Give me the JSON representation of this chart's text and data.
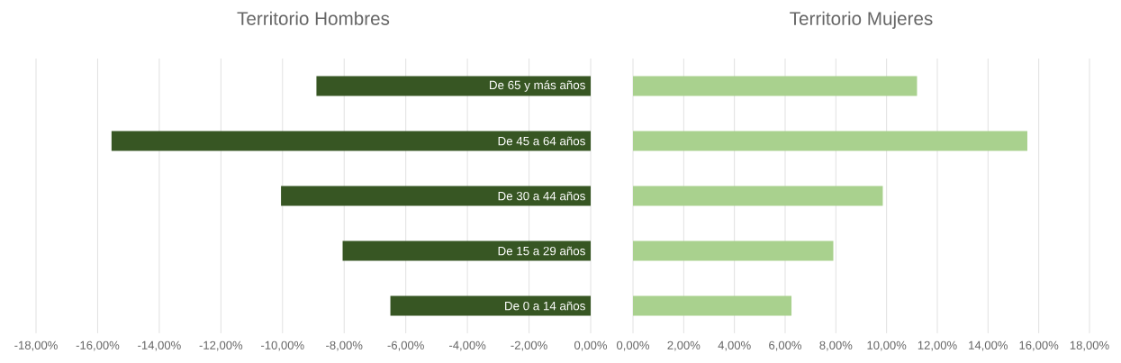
{
  "chart_data": [
    {
      "type": "bar",
      "orientation": "horizontal",
      "title": "Territorio Hombres",
      "categories": [
        "De 65 y más años",
        "De 45 a 64 años",
        "De 30 a 44 años",
        "De 15 a 29 años",
        "De 0 a 14 años"
      ],
      "values": [
        -8.9,
        -15.55,
        -10.05,
        -8.05,
        -6.5
      ],
      "color": "#375623",
      "xlim": [
        -18,
        0
      ],
      "xticks": [
        {
          "value": -18,
          "label": "-18,00%"
        },
        {
          "value": -16,
          "label": "-16,00%"
        },
        {
          "value": -14,
          "label": "-14,00%"
        },
        {
          "value": -12,
          "label": "-12,00%"
        },
        {
          "value": -10,
          "label": "-10,00%"
        },
        {
          "value": -8,
          "label": "-8,00%"
        },
        {
          "value": -6,
          "label": "-6,00%"
        },
        {
          "value": -4,
          "label": "-4,00%"
        },
        {
          "value": -2,
          "label": "-2,00%"
        },
        {
          "value": 0,
          "label": "0,00%"
        }
      ],
      "grid": "x"
    },
    {
      "type": "bar",
      "orientation": "horizontal",
      "title": "Territorio Mujeres",
      "categories": [
        null,
        null,
        null,
        null,
        null
      ],
      "values": [
        11.2,
        15.55,
        9.85,
        7.9,
        6.25
      ],
      "color": "#a9d18e",
      "xlim": [
        0,
        18
      ],
      "xticks": [
        {
          "value": 0,
          "label": "0,00%"
        },
        {
          "value": 2,
          "label": "2,00%"
        },
        {
          "value": 4,
          "label": "4,00%"
        },
        {
          "value": 6,
          "label": "6,00%"
        },
        {
          "value": 8,
          "label": "8,00%"
        },
        {
          "value": 10,
          "label": "10,00%"
        },
        {
          "value": 12,
          "label": "12,00%"
        },
        {
          "value": 14,
          "label": "14,00%"
        },
        {
          "value": 16,
          "label": "16,00%"
        },
        {
          "value": 18,
          "label": "18,00%"
        }
      ],
      "grid": "x",
      "tick_labels": "x"
    }
  ]
}
